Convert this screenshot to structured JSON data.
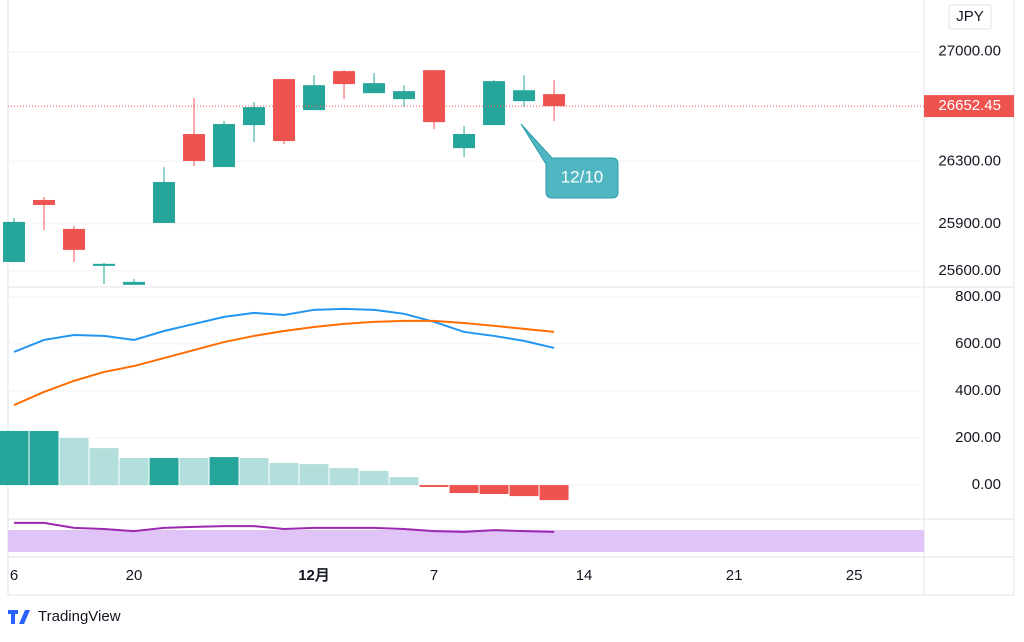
{
  "currency": "JPY",
  "logo": "TradingView",
  "annotation": "12/10",
  "chart_data": [
    {
      "type": "candlestick",
      "up_color": "#26a69a",
      "down_color": "#ef5350",
      "open": [
        25657,
        26053,
        25868,
        25632,
        25511,
        25906,
        26474,
        26263,
        26531,
        26825,
        26627,
        26876,
        26735,
        26697,
        26882,
        26384,
        26531,
        26684,
        26729
      ],
      "high": [
        25938,
        26072,
        25887,
        25651,
        25549,
        26263,
        26703,
        26557,
        26678,
        26825,
        26850,
        26882,
        26863,
        26786,
        26882,
        26525,
        26818,
        26850,
        26818
      ],
      "low": [
        25657,
        25861,
        25657,
        25517,
        25511,
        25906,
        26270,
        26263,
        26423,
        26410,
        26627,
        26697,
        26735,
        26646,
        26506,
        26327,
        26531,
        26646,
        26557
      ],
      "close": [
        25913,
        26021,
        25734,
        25645,
        25530,
        26168,
        26302,
        26538,
        26646,
        26429,
        26786,
        26793,
        26799,
        26748,
        26550,
        26474,
        26812,
        26754,
        26652.45
      ],
      "xlim": [
        -0.2,
        30.33
      ],
      "xticks": [
        {
          "value": 0,
          "label": "6"
        },
        {
          "value": 4,
          "label": "20"
        },
        {
          "value": 10,
          "label": "12月"
        },
        {
          "value": 14,
          "label": "7"
        },
        {
          "value": 19,
          "label": "14"
        },
        {
          "value": 24,
          "label": "21"
        },
        {
          "value": 28,
          "label": "25"
        }
      ],
      "ylim": [
        25510,
        27330
      ],
      "yticks": [
        {
          "value": 27000,
          "label": "27000.00"
        },
        {
          "value": 26300,
          "label": "26300.00"
        },
        {
          "value": 25900,
          "label": "25900.00"
        },
        {
          "value": 25600,
          "label": "25600.00"
        }
      ],
      "grid": true
    },
    {
      "type": "line",
      "ylim": [
        -140,
        842
      ],
      "yticks": [
        {
          "value": 800,
          "label": "800.00"
        },
        {
          "value": 600,
          "label": "600.00"
        },
        {
          "value": 400,
          "label": "400.00"
        },
        {
          "value": 200,
          "label": "200.00"
        },
        {
          "value": 0,
          "label": "0.00"
        }
      ],
      "grid": true,
      "series": [
        {
          "color": "#2196f3",
          "values": [
            566,
            617,
            638,
            634,
            617,
            655,
            685,
            715,
            732,
            723,
            745,
            749,
            745,
            728,
            694,
            651,
            634,
            613,
            583
          ]
        },
        {
          "color": "#ff6d00",
          "values": [
            340,
            396,
            443,
            481,
            506,
            540,
            574,
            608,
            634,
            655,
            672,
            685,
            694,
            698,
            698,
            689,
            677,
            664,
            651
          ]
        }
      ],
      "histogram": {
        "values": [
          230,
          230,
          200,
          157,
          115,
          115,
          115,
          119,
          115,
          94,
          89,
          72,
          60,
          34,
          -8,
          -34,
          -38,
          -47,
          -64
        ],
        "colors": [
          "#26a69a",
          "#26a69a",
          "#b2dfdb",
          "#b2dfdb",
          "#b2dfdb",
          "#26a69a",
          "#b2dfdb",
          "#26a69a",
          "#b2dfdb",
          "#b2dfdb",
          "#b2dfdb",
          "#b2dfdb",
          "#b2dfdb",
          "#b2dfdb",
          "#ef5350",
          "#ef5350",
          "#ef5350",
          "#ef5350",
          "#ef5350"
        ]
      }
    },
    {
      "type": "line",
      "ylim": [
        0,
        100
      ],
      "series": [
        {
          "color": "#9c27b0",
          "values": [
            92,
            92,
            78,
            75,
            69,
            78,
            81,
            83,
            83,
            75,
            78,
            78,
            78,
            75,
            69,
            67,
            72,
            69,
            67
          ]
        }
      ]
    }
  ]
}
